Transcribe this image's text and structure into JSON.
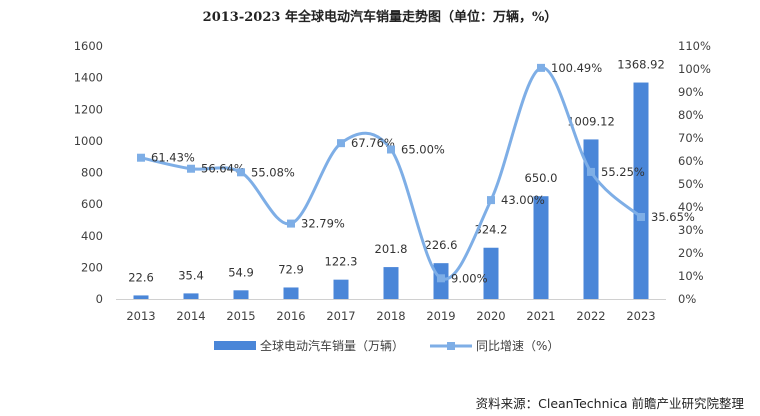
{
  "chart_data": {
    "type": "bar",
    "title": "2013-2023 年全球电动汽车销量走势图（单位：万辆，%）",
    "categories": [
      "2013",
      "2014",
      "2015",
      "2016",
      "2017",
      "2018",
      "2019",
      "2020",
      "2021",
      "2022",
      "2023"
    ],
    "series": [
      {
        "name": "全球电动汽车销量（万辆）",
        "type": "bar",
        "axis": "left",
        "color": "#4a86d8",
        "values": [
          22.6,
          35.4,
          54.9,
          72.9,
          122.3,
          201.8,
          226.6,
          324.2,
          650.0,
          1009.12,
          1368.92
        ],
        "labels": [
          "22.6",
          "35.4",
          "54.9",
          "72.9",
          "122.3",
          "201.8",
          "226.6",
          "324.2",
          "650.0",
          "1009.12",
          "1368.92"
        ]
      },
      {
        "name": "同比增速（%）",
        "type": "line",
        "axis": "right",
        "color": "#7eaee6",
        "values": [
          61.43,
          56.64,
          55.08,
          32.79,
          67.76,
          65.0,
          9.0,
          43.0,
          100.49,
          55.25,
          35.65
        ],
        "labels": [
          "61.43%",
          "56.64%",
          "55.08%",
          "32.79%",
          "67.76%",
          "65.00%",
          "9.00%",
          "43.00%",
          "100.49%",
          "55.25%",
          "35.65%"
        ]
      }
    ],
    "y_left": {
      "min": 0,
      "max": 1600,
      "step": 200,
      "ticks": [
        "0",
        "200",
        "400",
        "600",
        "800",
        "1000",
        "1200",
        "1400",
        "1600"
      ]
    },
    "y_right": {
      "min": 0,
      "max": 110,
      "step": 10,
      "ticks": [
        "0%",
        "10%",
        "20%",
        "30%",
        "40%",
        "50%",
        "60%",
        "70%",
        "80%",
        "90%",
        "100%",
        "110%"
      ]
    },
    "grid": false,
    "legend_position": "bottom",
    "source": "资料来源：CleanTechnica 前瞻产业研究院整理"
  }
}
